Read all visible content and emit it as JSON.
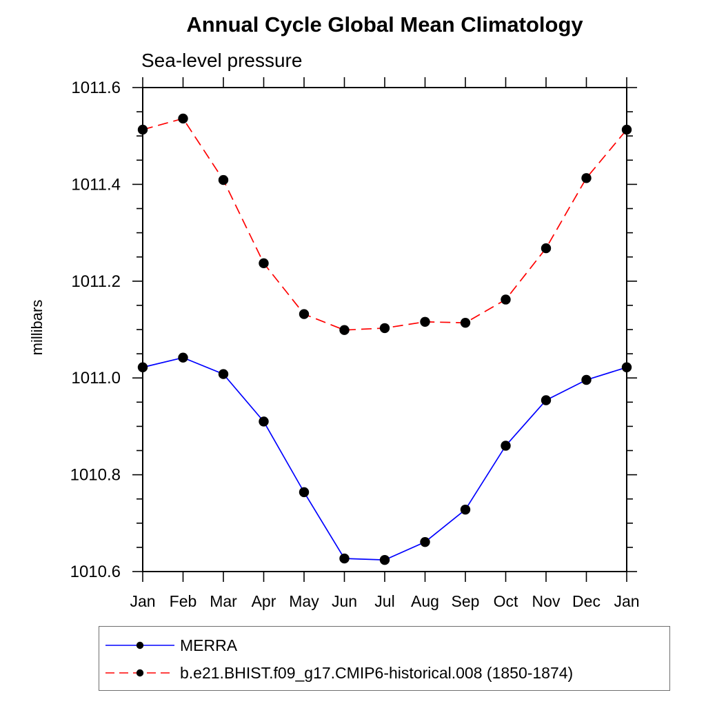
{
  "title": "Annual Cycle Global Mean Climatology",
  "subtitle": "Sea-level pressure",
  "chart_data": {
    "type": "line",
    "x_categories": [
      "Jan",
      "Feb",
      "Mar",
      "Apr",
      "May",
      "Jun",
      "Jul",
      "Aug",
      "Sep",
      "Oct",
      "Nov",
      "Dec",
      "Jan"
    ],
    "xlabel": "",
    "ylabel": "millibars",
    "ylim": [
      1010.6,
      1011.6
    ],
    "ytick_major_step": 0.2,
    "ytick_minor_step": 0.05,
    "grid": "off",
    "legend_position": "bottom-left",
    "frame_color": "#000000",
    "marker_color": "#000000",
    "series": [
      {
        "name": "MERRA",
        "color": "#0000ff",
        "line_style": "solid",
        "marker": "filled-circle",
        "values": [
          1011.022,
          1011.042,
          1011.008,
          1010.91,
          1010.764,
          1010.627,
          1010.624,
          1010.661,
          1010.728,
          1010.86,
          1010.954,
          1010.996,
          1011.022
        ]
      },
      {
        "name": "b.e21.BHIST.f09_g17.CMIP6-historical.008 (1850-1874)",
        "color": "#ff0000",
        "line_style": "dashed",
        "marker": "filled-circle",
        "values": [
          1011.513,
          1011.536,
          1011.409,
          1011.237,
          1011.132,
          1011.099,
          1011.103,
          1011.116,
          1011.114,
          1011.162,
          1011.268,
          1011.413,
          1011.513
        ]
      }
    ]
  }
}
